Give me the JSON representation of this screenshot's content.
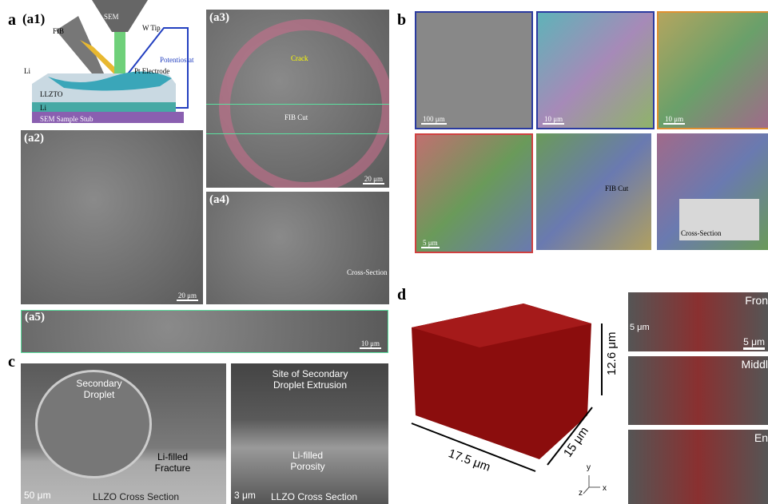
{
  "figure": {
    "a": {
      "label": "a",
      "a1": {
        "label": "(a1)",
        "fib": "FIB",
        "sem": "SEM",
        "w_tip": "W Tip",
        "potentiostat": "Potentiostat",
        "pt_electrode": "Pt Electrode",
        "li_top": "Li",
        "llzto": "LLZTO",
        "li_bottom": "Li",
        "stub": "SEM Sample Stub"
      },
      "a2": {
        "label": "(a2)",
        "scale": "20 μm"
      },
      "a3": {
        "label": "(a3)",
        "crack": "Crack",
        "fib_cut": "FIB Cut",
        "scale": "20 μm"
      },
      "a4": {
        "label": "(a4)",
        "cross_section": "Cross-Section"
      },
      "a5": {
        "label": "(a5)",
        "scale": "10 μm"
      }
    },
    "b": {
      "label": "b",
      "scales": [
        "100 μm",
        "10 μm",
        "10 μm",
        "5 μm"
      ],
      "fib_cut": "FIB Cut",
      "cross_section": "Cross-Section"
    },
    "c": {
      "label": "c",
      "left": {
        "droplet": "Secondary Droplet",
        "fracture": "Li-filled Fracture",
        "scale": "50 μm",
        "caption": "LLZO Cross Section"
      },
      "right": {
        "extrusion": "Site of Secondary Droplet Extrusion",
        "porosity": "Li-filled Porosity",
        "scale": "3 μm",
        "caption": "LLZO Cross Section"
      }
    },
    "d": {
      "label": "d",
      "height": "12.6 μm",
      "depth": "15 μm",
      "width": "17.5 μm",
      "axes": [
        "y",
        "z",
        "x"
      ],
      "slices": [
        {
          "name": "Fron",
          "scale": "5 μm",
          "scale2": "5 μm"
        },
        {
          "name": "Middl"
        },
        {
          "name": "En"
        }
      ]
    }
  }
}
